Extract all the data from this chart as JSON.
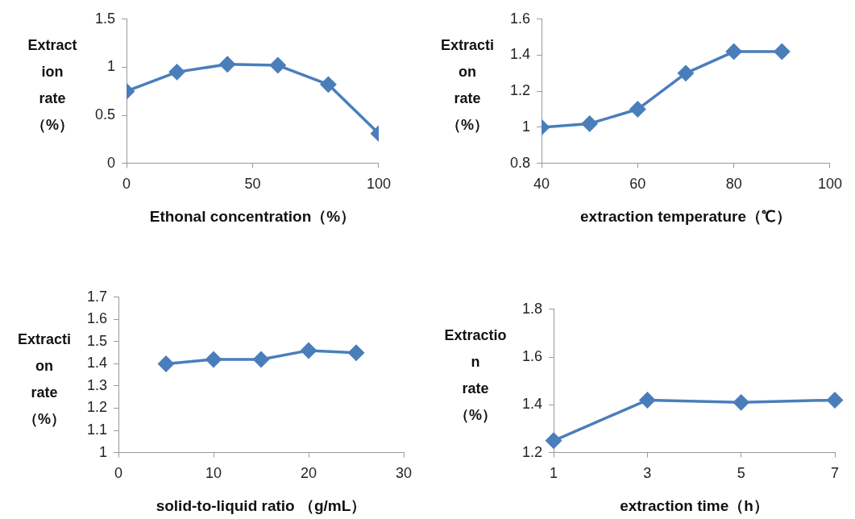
{
  "chart_data": [
    {
      "type": "line",
      "xlabel": "Ethonal concentration（%）",
      "ylabel": "Extract\nion\nrate\n（%）",
      "x": [
        0,
        20,
        40,
        60,
        80,
        100
      ],
      "values": [
        0.75,
        0.95,
        1.03,
        1.02,
        0.82,
        0.31
      ],
      "color": "#4a7ebb",
      "marker": "diamond",
      "xlim": [
        0,
        100
      ],
      "xticks": [
        0,
        50,
        100
      ],
      "ylim": [
        0,
        1.5
      ],
      "yticks": [
        0,
        0.5,
        1,
        1.5
      ]
    },
    {
      "type": "line",
      "xlabel": "extraction temperature（℃）",
      "ylabel": "Extracti\non\nrate\n（%）",
      "x": [
        40,
        50,
        60,
        70,
        80,
        90
      ],
      "values": [
        1.0,
        1.02,
        1.1,
        1.3,
        1.42,
        1.42
      ],
      "color": "#4a7ebb",
      "marker": "diamond",
      "xlim": [
        40,
        100
      ],
      "xticks": [
        40,
        60,
        80,
        100
      ],
      "ylim": [
        0.8,
        1.6
      ],
      "yticks": [
        0.8,
        1,
        1.2,
        1.4,
        1.6
      ]
    },
    {
      "type": "line",
      "xlabel": "solid-to-liquid ratio （g/mL）",
      "ylabel": "Extracti\non\nrate\n（%）",
      "x": [
        5,
        10,
        15,
        20,
        25
      ],
      "values": [
        1.4,
        1.42,
        1.42,
        1.46,
        1.45
      ],
      "color": "#4a7ebb",
      "marker": "diamond",
      "xlim": [
        0,
        30
      ],
      "xticks": [
        0,
        10,
        20,
        30
      ],
      "ylim": [
        1,
        1.7
      ],
      "yticks": [
        1,
        1.1,
        1.2,
        1.3,
        1.4,
        1.5,
        1.6,
        1.7
      ]
    },
    {
      "type": "line",
      "xlabel": "extraction time（h）",
      "ylabel": "Extractio\nn\nrate\n（%）",
      "categories": [
        "1",
        "3",
        "5",
        "7"
      ],
      "values": [
        1.25,
        1.42,
        1.41,
        1.42
      ],
      "color": "#4a7ebb",
      "marker": "diamond",
      "ylim": [
        1.2,
        1.8
      ],
      "yticks": [
        1.2,
        1.4,
        1.6,
        1.8
      ]
    }
  ]
}
